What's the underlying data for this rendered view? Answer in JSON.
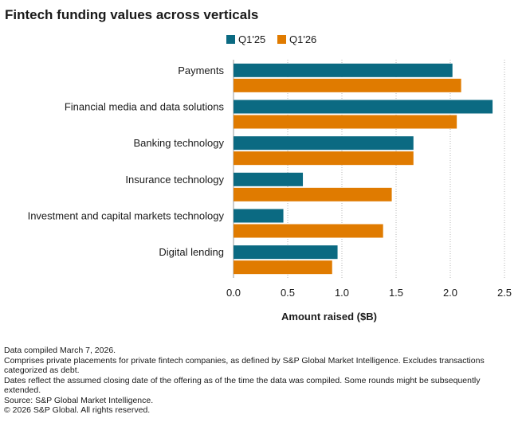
{
  "title": "Fintech funding values across verticals",
  "colors": {
    "q125": "#0b6a82",
    "q126": "#e07b00"
  },
  "chart_data": {
    "type": "bar",
    "orientation": "horizontal",
    "categories": [
      "Payments",
      "Financial media and data solutions",
      "Banking technology",
      "Insurance technology",
      "Investment and capital markets technology",
      "Digital lending"
    ],
    "series": [
      {
        "name": "Q1'25",
        "values": [
          2.02,
          2.39,
          1.66,
          0.64,
          0.46,
          0.96
        ]
      },
      {
        "name": "Q1'26",
        "values": [
          2.1,
          2.06,
          1.66,
          1.46,
          1.38,
          0.91
        ]
      }
    ],
    "xlabel": "Amount raised ($B)",
    "ylabel": "",
    "xlim": [
      0,
      2.5
    ],
    "xticks": [
      "0.0",
      "0.5",
      "1.0",
      "1.5",
      "2.0",
      "2.5"
    ],
    "grid": "vertical-dotted",
    "legend": "top"
  },
  "notes": [
    "Data compiled March 7, 2026.",
    "Comprises private placements for private fintech companies, as defined by S&P Global Market Intelligence. Excludes transactions categorized as debt.",
    "Dates reflect the assumed closing date of the offering as of the time the data was compiled. Some rounds might be subsequently extended.",
    "Source: S&P Global Market Intelligence.",
    "© 2026 S&P Global. All rights reserved."
  ]
}
